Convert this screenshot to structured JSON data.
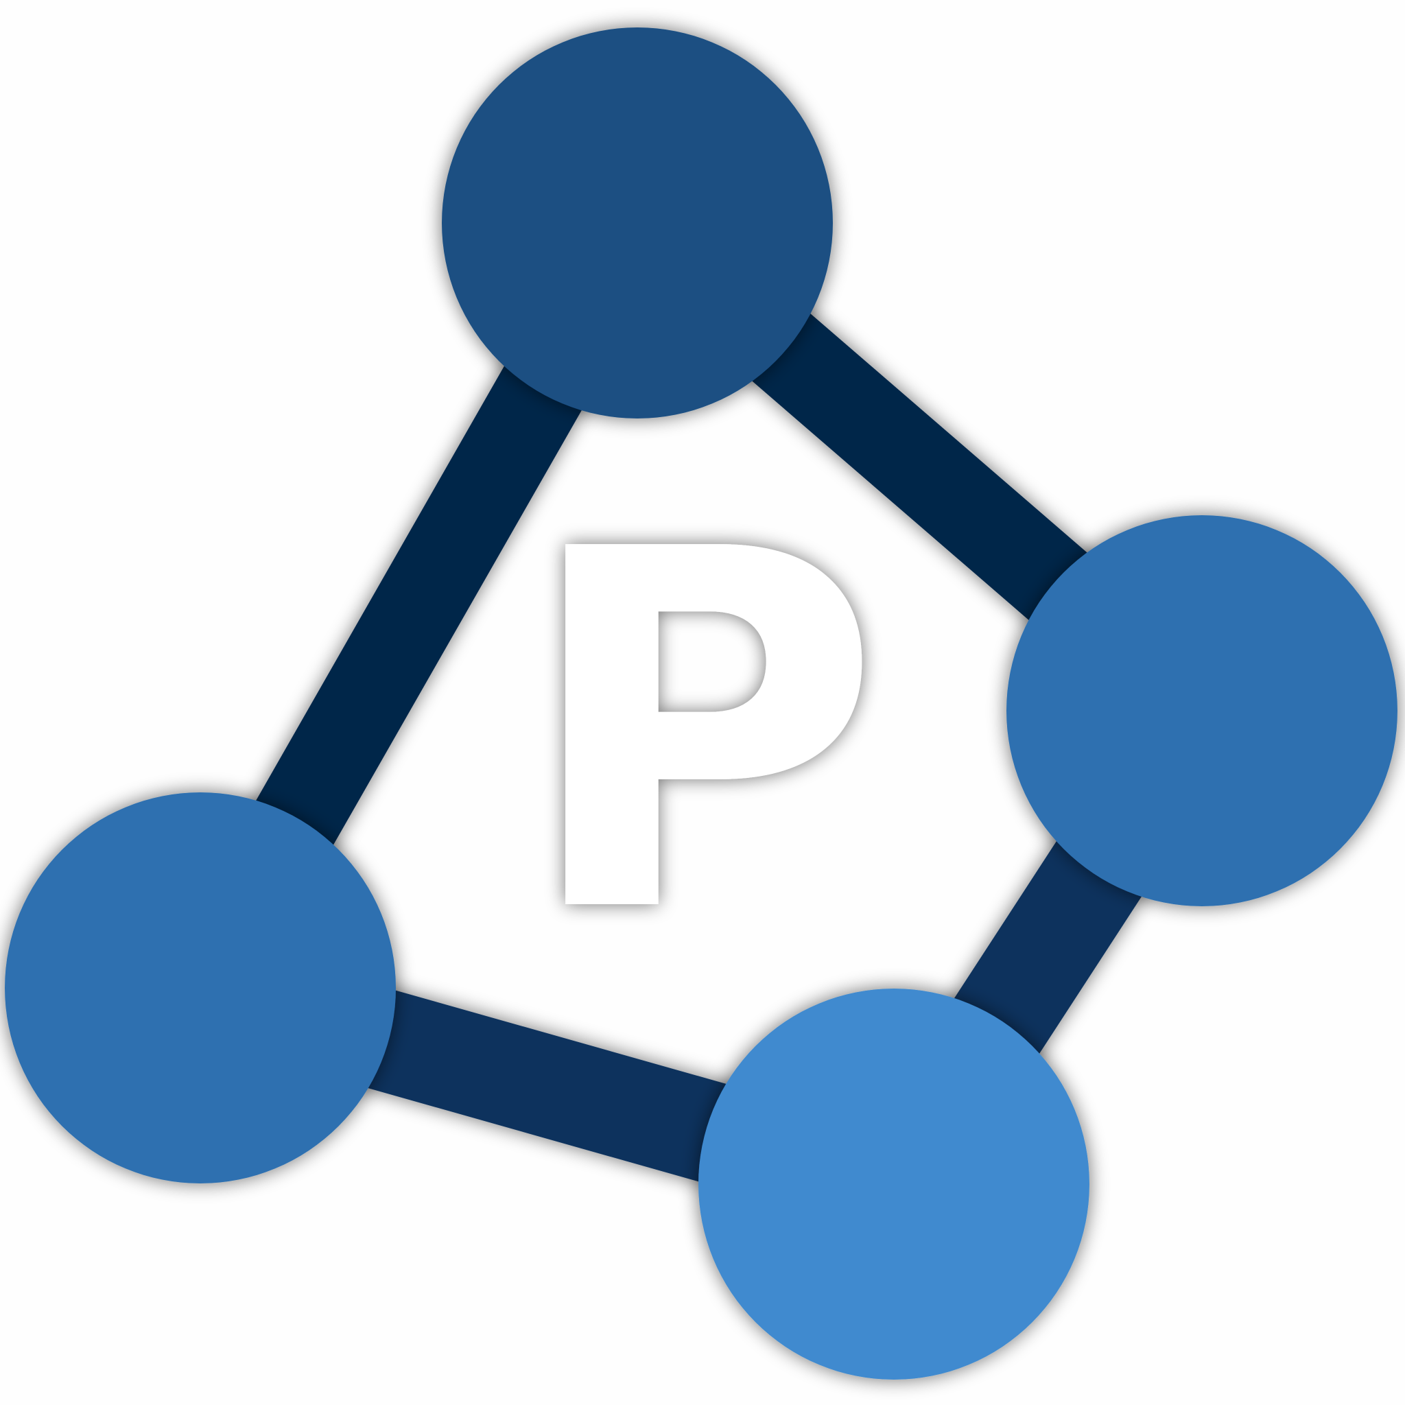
{
  "logo": {
    "letter": "P",
    "colors": {
      "background": "#fefefe",
      "edge_upper": "#052649",
      "edge_lower": "#0c335d",
      "node_top": "#1b4f82",
      "node_right": "#2d70b0",
      "node_left": "#2d70b0",
      "node_bottom": "#3f8acf",
      "letter": "#ffffff",
      "shadow": "#000000"
    }
  }
}
